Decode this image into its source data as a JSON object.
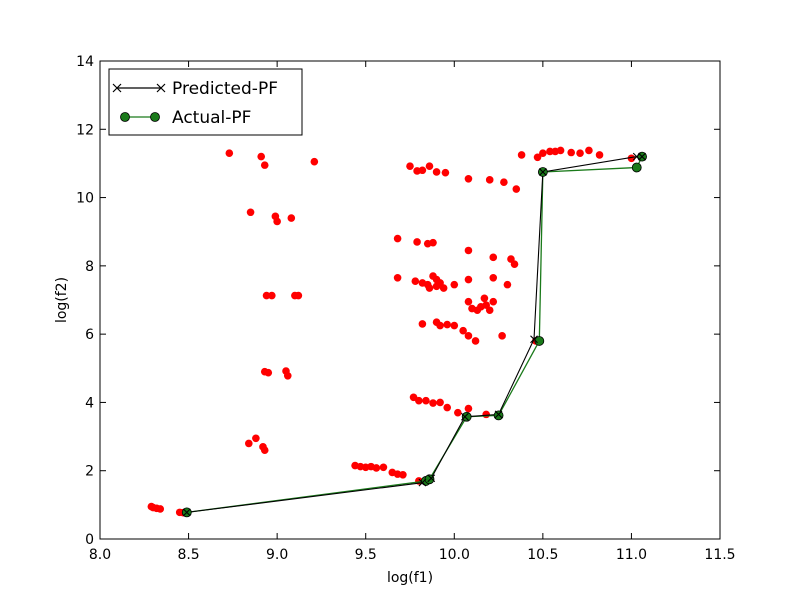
{
  "chart_data": {
    "type": "scatter",
    "title": "",
    "xlabel": "log(f1)",
    "ylabel": "log(f2)",
    "xlim": [
      8.0,
      11.5
    ],
    "ylim": [
      0,
      14
    ],
    "xticks": [
      "8.0",
      "8.5",
      "9.0",
      "9.5",
      "10.0",
      "10.5",
      "11.0",
      "11.5"
    ],
    "yticks": [
      "0",
      "2",
      "4",
      "6",
      "8",
      "10",
      "12",
      "14"
    ],
    "grid": false,
    "legend_position": "top-left",
    "legend": [
      {
        "label": "Predicted-PF",
        "color": "#000000",
        "marker": "x"
      },
      {
        "label": "Actual-PF",
        "color": "#1a7a1a",
        "marker": "o"
      }
    ],
    "scatter_color": "#ff0000",
    "scatter_points": [
      [
        8.29,
        0.95
      ],
      [
        8.3,
        0.92
      ],
      [
        8.32,
        0.9
      ],
      [
        8.34,
        0.88
      ],
      [
        8.45,
        0.78
      ],
      [
        8.47,
        0.77
      ],
      [
        8.73,
        11.3
      ],
      [
        8.91,
        11.2
      ],
      [
        8.93,
        10.95
      ],
      [
        9.21,
        11.05
      ],
      [
        8.85,
        9.57
      ],
      [
        8.99,
        9.45
      ],
      [
        9.0,
        9.3
      ],
      [
        9.08,
        9.4
      ],
      [
        8.94,
        7.13
      ],
      [
        8.97,
        7.13
      ],
      [
        9.1,
        7.13
      ],
      [
        9.12,
        7.13
      ],
      [
        8.93,
        4.9
      ],
      [
        8.95,
        4.87
      ],
      [
        9.05,
        4.92
      ],
      [
        9.06,
        4.78
      ],
      [
        8.84,
        2.8
      ],
      [
        8.88,
        2.95
      ],
      [
        8.92,
        2.7
      ],
      [
        8.93,
        2.6
      ],
      [
        9.44,
        2.15
      ],
      [
        9.47,
        2.12
      ],
      [
        9.5,
        2.1
      ],
      [
        9.53,
        2.12
      ],
      [
        9.56,
        2.08
      ],
      [
        9.6,
        2.1
      ],
      [
        9.65,
        1.95
      ],
      [
        9.68,
        1.9
      ],
      [
        9.71,
        1.88
      ],
      [
        9.8,
        1.7
      ],
      [
        9.75,
        10.92
      ],
      [
        9.79,
        10.78
      ],
      [
        9.82,
        10.8
      ],
      [
        9.86,
        10.92
      ],
      [
        9.9,
        10.75
      ],
      [
        9.95,
        10.73
      ],
      [
        10.08,
        10.55
      ],
      [
        10.2,
        10.52
      ],
      [
        10.28,
        10.45
      ],
      [
        10.35,
        10.25
      ],
      [
        10.38,
        11.25
      ],
      [
        10.47,
        11.18
      ],
      [
        10.5,
        11.3
      ],
      [
        10.54,
        11.35
      ],
      [
        10.57,
        11.35
      ],
      [
        10.6,
        11.38
      ],
      [
        10.66,
        11.32
      ],
      [
        10.71,
        11.3
      ],
      [
        10.76,
        11.38
      ],
      [
        10.82,
        11.25
      ],
      [
        11.0,
        11.15
      ],
      [
        9.68,
        8.8
      ],
      [
        9.79,
        8.7
      ],
      [
        9.85,
        8.65
      ],
      [
        9.88,
        8.68
      ],
      [
        10.08,
        8.45
      ],
      [
        10.22,
        8.25
      ],
      [
        10.32,
        8.2
      ],
      [
        10.34,
        8.05
      ],
      [
        9.68,
        7.65
      ],
      [
        9.78,
        7.55
      ],
      [
        9.82,
        7.5
      ],
      [
        9.85,
        7.45
      ],
      [
        9.86,
        7.35
      ],
      [
        9.88,
        7.7
      ],
      [
        9.9,
        7.6
      ],
      [
        9.9,
        7.4
      ],
      [
        9.92,
        7.5
      ],
      [
        9.94,
        7.35
      ],
      [
        10.0,
        7.45
      ],
      [
        10.08,
        7.6
      ],
      [
        10.22,
        7.65
      ],
      [
        10.3,
        7.45
      ],
      [
        10.08,
        6.95
      ],
      [
        10.1,
        6.75
      ],
      [
        10.13,
        6.7
      ],
      [
        10.15,
        6.8
      ],
      [
        10.17,
        7.05
      ],
      [
        10.18,
        6.85
      ],
      [
        10.2,
        6.7
      ],
      [
        10.22,
        6.95
      ],
      [
        9.82,
        6.3
      ],
      [
        9.9,
        6.35
      ],
      [
        9.92,
        6.25
      ],
      [
        9.96,
        6.28
      ],
      [
        10.0,
        6.25
      ],
      [
        10.05,
        6.1
      ],
      [
        10.08,
        5.95
      ],
      [
        10.12,
        5.8
      ],
      [
        10.27,
        5.95
      ],
      [
        10.46,
        5.8
      ],
      [
        9.77,
        4.15
      ],
      [
        9.8,
        4.05
      ],
      [
        9.84,
        4.05
      ],
      [
        9.88,
        3.98
      ],
      [
        9.92,
        4.0
      ],
      [
        9.96,
        3.85
      ],
      [
        10.02,
        3.7
      ],
      [
        10.08,
        3.82
      ],
      [
        10.18,
        3.65
      ]
    ],
    "series": [
      {
        "name": "Predicted-PF",
        "x": [
          8.49,
          9.82,
          9.87,
          10.06,
          10.25,
          10.45,
          10.5,
          11.03,
          11.06
        ],
        "y": [
          0.78,
          1.65,
          1.78,
          3.58,
          3.65,
          5.85,
          10.75,
          11.2,
          11.2
        ]
      },
      {
        "name": "Actual-PF",
        "x": [
          8.49,
          9.84,
          9.86,
          10.07,
          10.25,
          10.48,
          10.5,
          11.03,
          11.06
        ],
        "y": [
          0.78,
          1.7,
          1.75,
          3.58,
          3.62,
          5.8,
          10.75,
          10.88,
          11.2
        ]
      }
    ]
  }
}
